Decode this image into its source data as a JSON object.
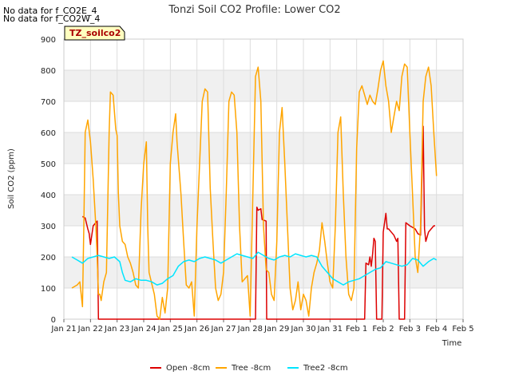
{
  "notes": [
    "No data for f_CO2E_4",
    "No data for f_CO2W_4"
  ],
  "site_tag": "TZ_soilco2",
  "chart_data": {
    "type": "line",
    "title": "Tonzi Soil CO2 Profile: Lower CO2",
    "xlabel": "Time",
    "ylabel": "Soil CO2 (ppm)",
    "ylim": [
      0,
      900
    ],
    "yticks": [
      0,
      100,
      200,
      300,
      400,
      500,
      600,
      700,
      800,
      900
    ],
    "xticks": [
      "Jan 21",
      "Jan 22",
      "Jan 23",
      "Jan 24",
      "Jan 25",
      "Jan 26",
      "Jan 27",
      "Jan 28",
      "Jan 29",
      "Jan 30",
      "Jan 31",
      "Feb 1",
      "Feb 2",
      "Feb 3",
      "Feb 4",
      "Feb 5"
    ],
    "xlim_days": [
      0,
      15
    ],
    "grid": true,
    "legend_position": "bottom",
    "series": [
      {
        "name": "Open -8cm",
        "color": "#dd0000",
        "points": [
          [
            0.7,
            330
          ],
          [
            0.8,
            325
          ],
          [
            0.9,
            290
          ],
          [
            0.95,
            275
          ],
          [
            1.0,
            240
          ],
          [
            1.05,
            270
          ],
          [
            1.1,
            300
          ],
          [
            1.2,
            310
          ],
          [
            1.25,
            315
          ],
          [
            1.3,
            0
          ],
          [
            7.2,
            0
          ],
          [
            7.25,
            360
          ],
          [
            7.3,
            350
          ],
          [
            7.4,
            355
          ],
          [
            7.45,
            320
          ],
          [
            7.6,
            315
          ],
          [
            7.62,
            0
          ],
          [
            11.3,
            0
          ],
          [
            11.35,
            180
          ],
          [
            11.45,
            175
          ],
          [
            11.5,
            200
          ],
          [
            11.55,
            170
          ],
          [
            11.6,
            210
          ],
          [
            11.65,
            260
          ],
          [
            11.7,
            250
          ],
          [
            11.75,
            0
          ],
          [
            11.95,
            0
          ],
          [
            12.0,
            280
          ],
          [
            12.1,
            340
          ],
          [
            12.15,
            290
          ],
          [
            12.2,
            290
          ],
          [
            12.3,
            280
          ],
          [
            12.4,
            270
          ],
          [
            12.5,
            250
          ],
          [
            12.55,
            260
          ],
          [
            12.6,
            0
          ],
          [
            12.8,
            0
          ],
          [
            12.85,
            310
          ],
          [
            13.0,
            300
          ],
          [
            13.2,
            290
          ],
          [
            13.3,
            275
          ],
          [
            13.4,
            270
          ],
          [
            13.5,
            620
          ],
          [
            13.55,
            290
          ],
          [
            13.6,
            250
          ],
          [
            13.7,
            280
          ],
          [
            13.8,
            290
          ],
          [
            13.9,
            300
          ],
          [
            13.95,
            300
          ]
        ]
      },
      {
        "name": "Tree -8cm",
        "color": "#ffa500",
        "points": [
          [
            0.3,
            100
          ],
          [
            0.5,
            110
          ],
          [
            0.6,
            120
          ],
          [
            0.7,
            40
          ],
          [
            0.75,
            300
          ],
          [
            0.8,
            600
          ],
          [
            0.9,
            640
          ],
          [
            1.0,
            570
          ],
          [
            1.1,
            450
          ],
          [
            1.2,
            300
          ],
          [
            1.25,
            200
          ],
          [
            1.3,
            80
          ],
          [
            1.35,
            80
          ],
          [
            1.4,
            60
          ],
          [
            1.5,
            120
          ],
          [
            1.6,
            150
          ],
          [
            1.7,
            600
          ],
          [
            1.75,
            730
          ],
          [
            1.85,
            720
          ],
          [
            1.95,
            610
          ],
          [
            2.0,
            590
          ],
          [
            2.05,
            400
          ],
          [
            2.1,
            300
          ],
          [
            2.2,
            250
          ],
          [
            2.3,
            240
          ],
          [
            2.4,
            200
          ],
          [
            2.5,
            180
          ],
          [
            2.6,
            150
          ],
          [
            2.7,
            110
          ],
          [
            2.8,
            100
          ],
          [
            2.9,
            350
          ],
          [
            3.0,
            500
          ],
          [
            3.1,
            570
          ],
          [
            3.15,
            300
          ],
          [
            3.2,
            150
          ],
          [
            3.4,
            80
          ],
          [
            3.5,
            10
          ],
          [
            3.6,
            0
          ],
          [
            3.7,
            70
          ],
          [
            3.8,
            20
          ],
          [
            3.9,
            100
          ],
          [
            4.0,
            500
          ],
          [
            4.1,
            600
          ],
          [
            4.2,
            660
          ],
          [
            4.25,
            570
          ],
          [
            4.4,
            400
          ],
          [
            4.5,
            250
          ],
          [
            4.6,
            110
          ],
          [
            4.7,
            100
          ],
          [
            4.8,
            120
          ],
          [
            4.9,
            10
          ],
          [
            5.0,
            300
          ],
          [
            5.2,
            700
          ],
          [
            5.3,
            740
          ],
          [
            5.4,
            730
          ],
          [
            5.5,
            420
          ],
          [
            5.6,
            250
          ],
          [
            5.7,
            100
          ],
          [
            5.8,
            60
          ],
          [
            5.9,
            80
          ],
          [
            6.0,
            150
          ],
          [
            6.1,
            400
          ],
          [
            6.2,
            700
          ],
          [
            6.3,
            730
          ],
          [
            6.4,
            720
          ],
          [
            6.5,
            600
          ],
          [
            6.6,
            300
          ],
          [
            6.7,
            120
          ],
          [
            6.8,
            130
          ],
          [
            6.9,
            140
          ],
          [
            7.0,
            10
          ],
          [
            7.1,
            400
          ],
          [
            7.2,
            780
          ],
          [
            7.3,
            810
          ],
          [
            7.4,
            700
          ],
          [
            7.5,
            300
          ],
          [
            7.6,
            160
          ],
          [
            7.7,
            150
          ],
          [
            7.8,
            80
          ],
          [
            7.9,
            60
          ],
          [
            8.0,
            250
          ],
          [
            8.1,
            600
          ],
          [
            8.2,
            680
          ],
          [
            8.3,
            500
          ],
          [
            8.4,
            300
          ],
          [
            8.5,
            100
          ],
          [
            8.6,
            30
          ],
          [
            8.7,
            60
          ],
          [
            8.8,
            120
          ],
          [
            8.9,
            30
          ],
          [
            9.0,
            80
          ],
          [
            9.1,
            60
          ],
          [
            9.2,
            10
          ],
          [
            9.3,
            100
          ],
          [
            9.4,
            150
          ],
          [
            9.5,
            180
          ],
          [
            9.6,
            220
          ],
          [
            9.7,
            310
          ],
          [
            9.8,
            250
          ],
          [
            9.9,
            180
          ],
          [
            10.0,
            120
          ],
          [
            10.1,
            100
          ],
          [
            10.2,
            300
          ],
          [
            10.3,
            600
          ],
          [
            10.4,
            650
          ],
          [
            10.5,
            400
          ],
          [
            10.6,
            200
          ],
          [
            10.7,
            80
          ],
          [
            10.8,
            60
          ],
          [
            10.9,
            100
          ],
          [
            11.0,
            550
          ],
          [
            11.1,
            730
          ],
          [
            11.2,
            750
          ],
          [
            11.3,
            720
          ],
          [
            11.4,
            690
          ],
          [
            11.5,
            720
          ],
          [
            11.6,
            700
          ],
          [
            11.7,
            690
          ],
          [
            11.8,
            740
          ],
          [
            11.9,
            800
          ],
          [
            12.0,
            830
          ],
          [
            12.1,
            750
          ],
          [
            12.2,
            700
          ],
          [
            12.3,
            600
          ],
          [
            12.4,
            650
          ],
          [
            12.5,
            700
          ],
          [
            12.6,
            670
          ],
          [
            12.7,
            780
          ],
          [
            12.8,
            820
          ],
          [
            12.9,
            810
          ],
          [
            13.0,
            600
          ],
          [
            13.1,
            400
          ],
          [
            13.2,
            200
          ],
          [
            13.3,
            150
          ],
          [
            13.4,
            300
          ],
          [
            13.5,
            700
          ],
          [
            13.6,
            780
          ],
          [
            13.7,
            810
          ],
          [
            13.8,
            750
          ],
          [
            13.9,
            600
          ],
          [
            14.0,
            460
          ]
        ]
      },
      {
        "name": "Tree2 -8cm",
        "color": "#00e5ff",
        "points": [
          [
            0.3,
            200
          ],
          [
            0.5,
            190
          ],
          [
            0.7,
            180
          ],
          [
            0.9,
            195
          ],
          [
            1.1,
            200
          ],
          [
            1.3,
            205
          ],
          [
            1.5,
            200
          ],
          [
            1.7,
            195
          ],
          [
            1.9,
            200
          ],
          [
            2.1,
            185
          ],
          [
            2.2,
            150
          ],
          [
            2.3,
            125
          ],
          [
            2.5,
            120
          ],
          [
            2.7,
            130
          ],
          [
            2.9,
            125
          ],
          [
            3.1,
            125
          ],
          [
            3.3,
            120
          ],
          [
            3.5,
            110
          ],
          [
            3.7,
            115
          ],
          [
            3.9,
            130
          ],
          [
            4.1,
            140
          ],
          [
            4.3,
            170
          ],
          [
            4.5,
            185
          ],
          [
            4.7,
            190
          ],
          [
            4.9,
            185
          ],
          [
            5.1,
            195
          ],
          [
            5.3,
            200
          ],
          [
            5.5,
            195
          ],
          [
            5.7,
            190
          ],
          [
            5.9,
            180
          ],
          [
            6.1,
            190
          ],
          [
            6.3,
            200
          ],
          [
            6.5,
            210
          ],
          [
            6.7,
            205
          ],
          [
            6.9,
            200
          ],
          [
            7.1,
            195
          ],
          [
            7.3,
            215
          ],
          [
            7.5,
            205
          ],
          [
            7.7,
            195
          ],
          [
            7.9,
            190
          ],
          [
            8.1,
            200
          ],
          [
            8.3,
            205
          ],
          [
            8.5,
            200
          ],
          [
            8.7,
            210
          ],
          [
            8.9,
            205
          ],
          [
            9.1,
            200
          ],
          [
            9.3,
            205
          ],
          [
            9.5,
            200
          ],
          [
            9.7,
            170
          ],
          [
            9.9,
            150
          ],
          [
            10.1,
            130
          ],
          [
            10.3,
            120
          ],
          [
            10.5,
            110
          ],
          [
            10.7,
            120
          ],
          [
            10.9,
            125
          ],
          [
            11.1,
            130
          ],
          [
            11.3,
            140
          ],
          [
            11.5,
            150
          ],
          [
            11.7,
            160
          ],
          [
            11.9,
            165
          ],
          [
            12.1,
            185
          ],
          [
            12.3,
            180
          ],
          [
            12.5,
            175
          ],
          [
            12.7,
            170
          ],
          [
            12.9,
            175
          ],
          [
            13.1,
            195
          ],
          [
            13.3,
            190
          ],
          [
            13.5,
            170
          ],
          [
            13.7,
            185
          ],
          [
            13.9,
            195
          ],
          [
            14.0,
            190
          ]
        ]
      }
    ]
  }
}
